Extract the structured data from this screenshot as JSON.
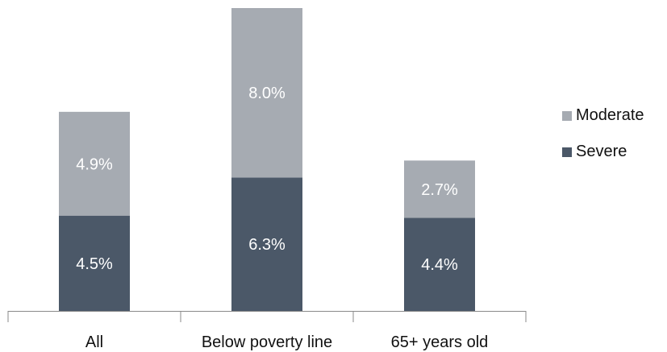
{
  "chart_data": {
    "type": "bar",
    "stacked": true,
    "categories": [
      "All",
      "Below poverty line",
      "65+ years old"
    ],
    "series": [
      {
        "name": "Severe",
        "values": [
          4.5,
          6.3,
          4.4
        ],
        "labels": [
          "4.5%",
          "6.3%",
          "4.4%"
        ],
        "color": "#4b5868"
      },
      {
        "name": "Moderate",
        "values": [
          4.9,
          8.0,
          2.7
        ],
        "labels": [
          "4.9%",
          "8.0%",
          "2.7%"
        ],
        "color": "#a6abb2"
      }
    ],
    "legend": {
      "placement": "right",
      "order": [
        "Moderate",
        "Severe"
      ]
    },
    "ylim": [
      0,
      14.3
    ],
    "grid": false,
    "axis_color": "#8a8a8a",
    "label_color": "#ffffff"
  }
}
